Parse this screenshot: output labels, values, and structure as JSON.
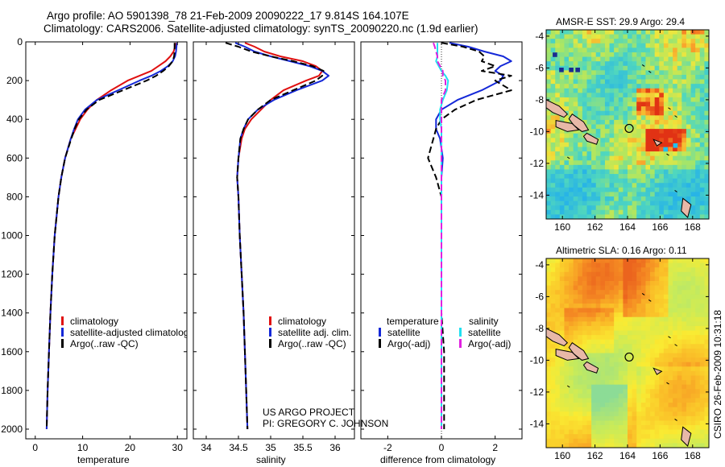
{
  "title": {
    "line1": "Argo profile: AO 5901398_78 21-Feb-2009 20090222_17 9.814S 164.107E",
    "line2": "Climatology: CARS2006. Satellite-adjusted climatology: synTS_20090220.nc (1.9d earlier)"
  },
  "colors": {
    "climatology": "#e01010",
    "satellite": "#1428d8",
    "argo": "#000000",
    "sat_diff": "#20e0f0",
    "argo_diff": "#e020e0"
  },
  "footer": {
    "project": "US ARGO PROJECT",
    "pi": "PI: GREGORY C. JOHNSON",
    "stamp": "CSIRO 26-Feb-2009 10:31:18"
  },
  "chart_data": [
    {
      "type": "line",
      "id": "temperature",
      "xlabel": "temperature",
      "ylabel": "",
      "xlim": [
        -2,
        32
      ],
      "ylim": [
        2050,
        0
      ],
      "xticks": [
        0,
        10,
        20,
        30
      ],
      "yticks": [
        0,
        200,
        400,
        600,
        800,
        1000,
        1200,
        1400,
        1600,
        1800,
        2000
      ],
      "legend": [
        "climatology",
        "satellite-adjusted climatology",
        "Argo(..raw -QC)"
      ],
      "depth": [
        5,
        25,
        50,
        75,
        100,
        125,
        150,
        175,
        200,
        250,
        300,
        350,
        400,
        450,
        500,
        600,
        700,
        800,
        1000,
        1200,
        1400,
        1600,
        1800,
        2000
      ],
      "series": [
        {
          "name": "climatology",
          "color": "red",
          "dash": false,
          "values": [
            29.6,
            29.5,
            29.2,
            28.5,
            27.5,
            26.0,
            24.5,
            22.0,
            19.5,
            16.0,
            13.0,
            11.0,
            9.5,
            8.5,
            7.5,
            6.3,
            5.5,
            4.9,
            4.1,
            3.6,
            3.2,
            2.9,
            2.6,
            2.4
          ]
        },
        {
          "name": "satellite-adjusted climatology",
          "color": "blue",
          "dash": false,
          "values": [
            29.9,
            29.8,
            29.7,
            29.5,
            29.0,
            28.0,
            26.5,
            24.5,
            22.0,
            17.5,
            13.0,
            10.5,
            9.0,
            8.2,
            7.5,
            6.3,
            5.5,
            4.9,
            4.1,
            3.6,
            3.2,
            2.9,
            2.6,
            2.4
          ]
        },
        {
          "name": "Argo(..raw -QC)",
          "color": "black",
          "dash": true,
          "values": [
            29.4,
            29.4,
            29.4,
            29.3,
            29.0,
            28.2,
            27.0,
            25.5,
            23.5,
            18.5,
            13.5,
            10.8,
            9.2,
            8.3,
            7.6,
            6.3,
            5.5,
            4.9,
            4.1,
            3.6,
            3.2,
            2.9,
            2.6,
            2.4
          ]
        }
      ]
    },
    {
      "type": "line",
      "id": "salinity",
      "xlabel": "salinity",
      "ylabel": "",
      "xlim": [
        33.8,
        36.3
      ],
      "ylim": [
        2050,
        0
      ],
      "xticks": [
        34,
        34.5,
        35,
        35.5,
        36
      ],
      "legend": [
        "climatology",
        "satellite adj. clim.",
        "Argo(..raw -QC)"
      ],
      "depth": [
        5,
        25,
        50,
        75,
        100,
        125,
        150,
        175,
        200,
        250,
        300,
        350,
        400,
        450,
        500,
        600,
        700,
        800,
        1000,
        1200,
        1400,
        1600,
        1800,
        2000
      ],
      "series": [
        {
          "name": "climatology",
          "color": "red",
          "dash": false,
          "values": [
            34.6,
            34.75,
            34.9,
            35.15,
            35.5,
            35.7,
            35.8,
            35.75,
            35.55,
            35.2,
            35.0,
            34.85,
            34.7,
            34.6,
            34.55,
            34.5,
            34.48,
            34.5,
            34.52,
            34.55,
            34.58,
            34.6,
            34.62,
            34.64
          ]
        },
        {
          "name": "satellite adj. clim.",
          "color": "blue",
          "dash": false,
          "values": [
            34.45,
            34.6,
            34.75,
            35.0,
            35.3,
            35.6,
            35.8,
            35.9,
            35.8,
            35.4,
            35.05,
            34.8,
            34.65,
            34.58,
            34.53,
            34.5,
            34.48,
            34.5,
            34.52,
            34.55,
            34.58,
            34.6,
            34.62,
            34.64
          ]
        },
        {
          "name": "Argo(..raw -QC)",
          "color": "black",
          "dash": true,
          "values": [
            34.3,
            34.5,
            34.7,
            35.0,
            35.35,
            35.65,
            35.82,
            35.8,
            35.7,
            35.35,
            35.0,
            34.8,
            34.65,
            34.58,
            34.53,
            34.5,
            34.48,
            34.5,
            34.52,
            34.55,
            34.58,
            34.6,
            34.62,
            34.64
          ]
        }
      ]
    },
    {
      "type": "line",
      "id": "difference",
      "xlabel": "difference from climatology",
      "ylabel": "",
      "xlim": [
        -3,
        3
      ],
      "ylim": [
        2050,
        0
      ],
      "xticks": [
        -2,
        0,
        2
      ],
      "legend_headers": [
        "temperature",
        "salinity"
      ],
      "legend": [
        "satellite",
        "Argo(-adj)",
        "satellite",
        "Argo(-adj)"
      ],
      "depth": [
        5,
        25,
        50,
        75,
        100,
        125,
        150,
        175,
        200,
        250,
        300,
        350,
        400,
        450,
        500,
        600,
        700,
        800,
        1000,
        1200,
        1400,
        1600,
        1800,
        2000
      ],
      "series": [
        {
          "name": "temperature satellite",
          "color": "blue",
          "dash": false,
          "values": [
            0.3,
            1.0,
            1.6,
            2.3,
            2.6,
            2.2,
            2.0,
            2.3,
            2.2,
            1.5,
            0.6,
            0.0,
            -0.2,
            -0.2,
            -0.05,
            0.05,
            0.0,
            0.0,
            0.0,
            0.0,
            0.0,
            0.0,
            0.0,
            0.0
          ]
        },
        {
          "name": "temperature Argo(-adj)",
          "color": "black",
          "dash": true,
          "values": [
            0.0,
            0.8,
            1.4,
            1.6,
            1.5,
            2.0,
            1.5,
            2.6,
            2.0,
            2.6,
            1.3,
            0.5,
            0.0,
            -0.2,
            -0.3,
            -0.5,
            -0.2,
            0.0,
            0.0,
            0.0,
            0.0,
            0.1,
            0.1,
            0.1
          ]
        },
        {
          "name": "salinity satellite",
          "color": "cyan",
          "dash": false,
          "values": [
            -0.15,
            -0.15,
            -0.15,
            -0.15,
            -0.2,
            -0.1,
            0.0,
            0.15,
            0.25,
            0.2,
            0.05,
            -0.05,
            -0.05,
            0.0,
            0.0,
            0.0,
            0.0,
            0.0,
            0.0,
            0.0,
            0.0,
            0.0,
            0.0,
            0.0
          ]
        },
        {
          "name": "salinity Argo(-adj)",
          "color": "magenta",
          "dash": true,
          "values": [
            -0.3,
            -0.25,
            -0.2,
            -0.15,
            -0.15,
            -0.05,
            0.05,
            0.05,
            0.15,
            0.15,
            0.0,
            0.0,
            0.0,
            0.0,
            0.0,
            0.0,
            0.0,
            0.0,
            0.0,
            0.0,
            0.0,
            0.0,
            0.0,
            0.0
          ]
        }
      ],
      "diff_axis_scale": {
        "temperature_factor": 1.0,
        "salinity_factor": 4.0
      }
    },
    {
      "type": "heatmap",
      "id": "sst",
      "title": "AMSR-E SST: 29.9 Argo: 29.4",
      "xlim": [
        159,
        169
      ],
      "ylim": [
        -15.5,
        -3.6
      ],
      "xticks": [
        160,
        162,
        164,
        166,
        168
      ],
      "yticks": [
        -4,
        -6,
        -8,
        -10,
        -12,
        -14
      ],
      "float_position": [
        164.1,
        -9.8
      ]
    },
    {
      "type": "heatmap",
      "id": "sla",
      "title": "Altimetric SLA: 0.16 Argo: 0.11",
      "xlim": [
        159,
        169
      ],
      "ylim": [
        -15.5,
        -3.6
      ],
      "xticks": [
        160,
        162,
        164,
        166,
        168
      ],
      "yticks": [
        -4,
        -6,
        -8,
        -10,
        -12,
        -14
      ],
      "float_position": [
        164.1,
        -9.8
      ]
    }
  ]
}
